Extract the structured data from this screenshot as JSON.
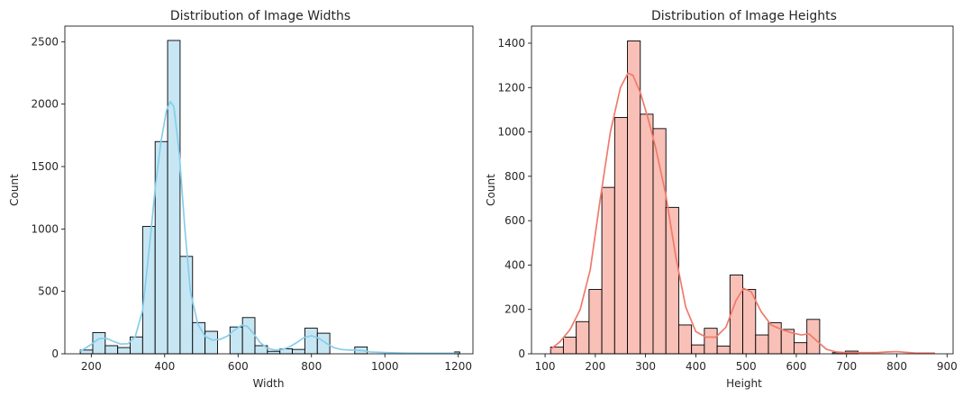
{
  "chart_data": [
    {
      "type": "bar",
      "title": "Distribution of Image Widths",
      "xlabel": "Width",
      "ylabel": "Count",
      "xlim": [
        128,
        1240
      ],
      "ylim": [
        0,
        2625
      ],
      "xticks": [
        200,
        400,
        600,
        800,
        1000,
        1200
      ],
      "yticks": [
        0,
        500,
        1000,
        1500,
        2000,
        2500
      ],
      "bin_edges": [
        170,
        204,
        238,
        272,
        306,
        340,
        374,
        408,
        442,
        476,
        510,
        544,
        578,
        612,
        646,
        680,
        714,
        748,
        782,
        816,
        850,
        884,
        918,
        952,
        986,
        1020,
        1054,
        1088,
        1122,
        1156,
        1190,
        1204
      ],
      "values": [
        30,
        170,
        65,
        50,
        135,
        1020,
        1700,
        2510,
        780,
        250,
        180,
        0,
        215,
        290,
        65,
        20,
        40,
        35,
        205,
        165,
        0,
        0,
        55,
        0,
        0,
        0,
        0,
        0,
        0,
        0,
        15
      ],
      "fill_color": "#C7E6F3",
      "edge_color": "#000000",
      "kde_color": "#87CEEB",
      "kde": {
        "x": [
          170,
          200,
          220,
          240,
          260,
          280,
          300,
          320,
          340,
          360,
          375,
          390,
          405,
          415,
          425,
          440,
          455,
          470,
          490,
          510,
          530,
          550,
          570,
          590,
          610,
          625,
          640,
          660,
          680,
          700,
          720,
          740,
          760,
          780,
          800,
          820,
          840,
          860,
          880,
          900,
          920,
          940,
          960,
          1000,
          1050,
          1100,
          1150,
          1200
        ],
        "y": [
          20,
          75,
          120,
          125,
          100,
          78,
          80,
          140,
          350,
          900,
          1350,
          1700,
          1950,
          2020,
          1980,
          1600,
          1000,
          500,
          240,
          140,
          110,
          115,
          140,
          190,
          230,
          220,
          170,
          90,
          45,
          30,
          35,
          55,
          90,
          130,
          145,
          125,
          85,
          50,
          35,
          30,
          30,
          25,
          15,
          10,
          6,
          5,
          5,
          5
        ]
      }
    },
    {
      "type": "bar",
      "title": "Distribution of Image Heights",
      "xlabel": "Height",
      "ylabel": "Count",
      "xlim": [
        73,
        912
      ],
      "ylim": [
        0,
        1477
      ],
      "xticks": [
        100,
        200,
        300,
        400,
        500,
        600,
        700,
        800,
        900
      ],
      "yticks": [
        0,
        200,
        400,
        600,
        800,
        1000,
        1200,
        1400
      ],
      "bin_edges": [
        111,
        136.5,
        162,
        187.5,
        213,
        238.5,
        264,
        289.5,
        315,
        340.5,
        366,
        391.5,
        417,
        442.5,
        468,
        493.5,
        519,
        544.5,
        570,
        595.5,
        621,
        646.5,
        672,
        697.5,
        723,
        748.5,
        774,
        799.5,
        825,
        850.5,
        876
      ],
      "values": [
        30,
        75,
        145,
        290,
        750,
        1065,
        1410,
        1080,
        1015,
        660,
        130,
        40,
        115,
        35,
        355,
        290,
        85,
        140,
        110,
        50,
        155,
        0,
        5,
        12,
        0,
        0,
        0,
        0,
        0,
        0
      ],
      "fill_color": "#F9C0B7",
      "edge_color": "#000000",
      "kde_color": "#F07A6C",
      "kde": {
        "x": [
          111,
          130,
          150,
          170,
          190,
          210,
          230,
          250,
          265,
          275,
          290,
          305,
          320,
          340,
          360,
          380,
          400,
          420,
          440,
          460,
          480,
          495,
          510,
          530,
          550,
          570,
          590,
          610,
          625,
          640,
          660,
          680,
          700,
          720,
          740,
          760,
          780,
          800,
          820,
          840,
          860,
          876
        ],
        "y": [
          20,
          55,
          110,
          200,
          380,
          700,
          1000,
          1200,
          1265,
          1255,
          1175,
          1060,
          930,
          720,
          440,
          210,
          100,
          75,
          75,
          120,
          240,
          295,
          280,
          190,
          130,
          110,
          95,
          85,
          90,
          60,
          20,
          8,
          5,
          5,
          5,
          5,
          8,
          10,
          6,
          3,
          3,
          3
        ]
      }
    }
  ]
}
